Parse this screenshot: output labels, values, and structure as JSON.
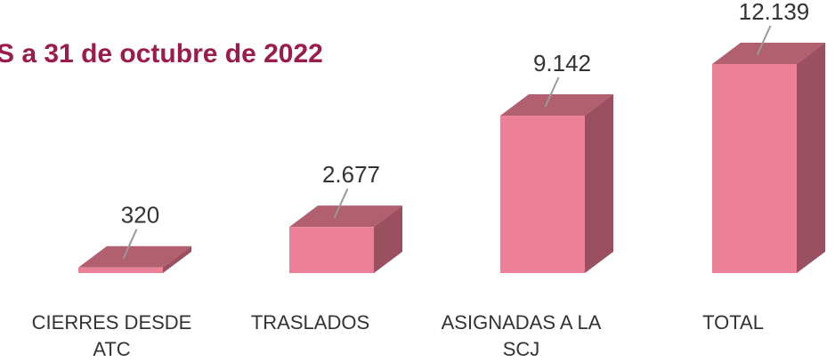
{
  "chart_data": {
    "type": "bar3d",
    "title": "S a 31 de octubre de 2022",
    "categories": [
      "CIERRES DESDE ATC",
      "TRASLADOS",
      "ASIGNADAS A LA SCJ",
      "TOTAL"
    ],
    "values": [
      320,
      2677,
      9142,
      12139
    ],
    "value_labels": [
      "320",
      "2.677",
      "9.142",
      "12.139"
    ],
    "color": "#ec8096"
  }
}
